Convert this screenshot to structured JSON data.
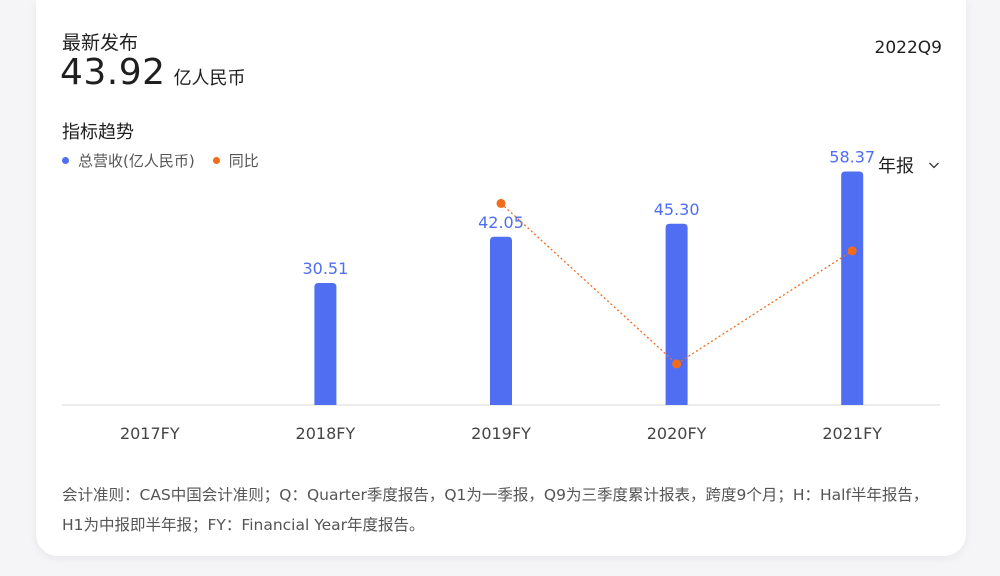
{
  "header": {
    "latest_label": "最新发布",
    "latest_value": "43.92",
    "latest_unit": "亿人民币",
    "period": "2022Q9"
  },
  "trend": {
    "title": "指标趋势",
    "period_select": "年报"
  },
  "colors": {
    "bar": "#4f6ef2",
    "line": "#f26b1d",
    "value_label": "#4f6ef2",
    "axis": "#e6e6e6"
  },
  "chart_data": {
    "type": "bar",
    "categories": [
      "2017FY",
      "2018FY",
      "2019FY",
      "2020FY",
      "2021FY"
    ],
    "series": [
      {
        "name": "总营收(亿人民币)",
        "type": "bar",
        "values": [
          null,
          30.51,
          42.05,
          45.3,
          58.37
        ],
        "labels": [
          "",
          "30.51",
          "42.05",
          "45.30",
          "58.37"
        ]
      },
      {
        "name": "同比",
        "type": "line",
        "values": [
          null,
          null,
          37.8,
          7.7,
          28.9
        ]
      }
    ],
    "ylim": [
      0,
      60
    ],
    "secondary_ylim": [
      0,
      45
    ],
    "grid": false,
    "legend": "top-left"
  },
  "footnote": "会计准则：CAS中国会计准则；Q：Quarter季度报告，Q1为一季报，Q9为三季度累计报表，跨度9个月；H：Half半年报告，H1为中报即半年报；FY：Financial Year年度报告。"
}
